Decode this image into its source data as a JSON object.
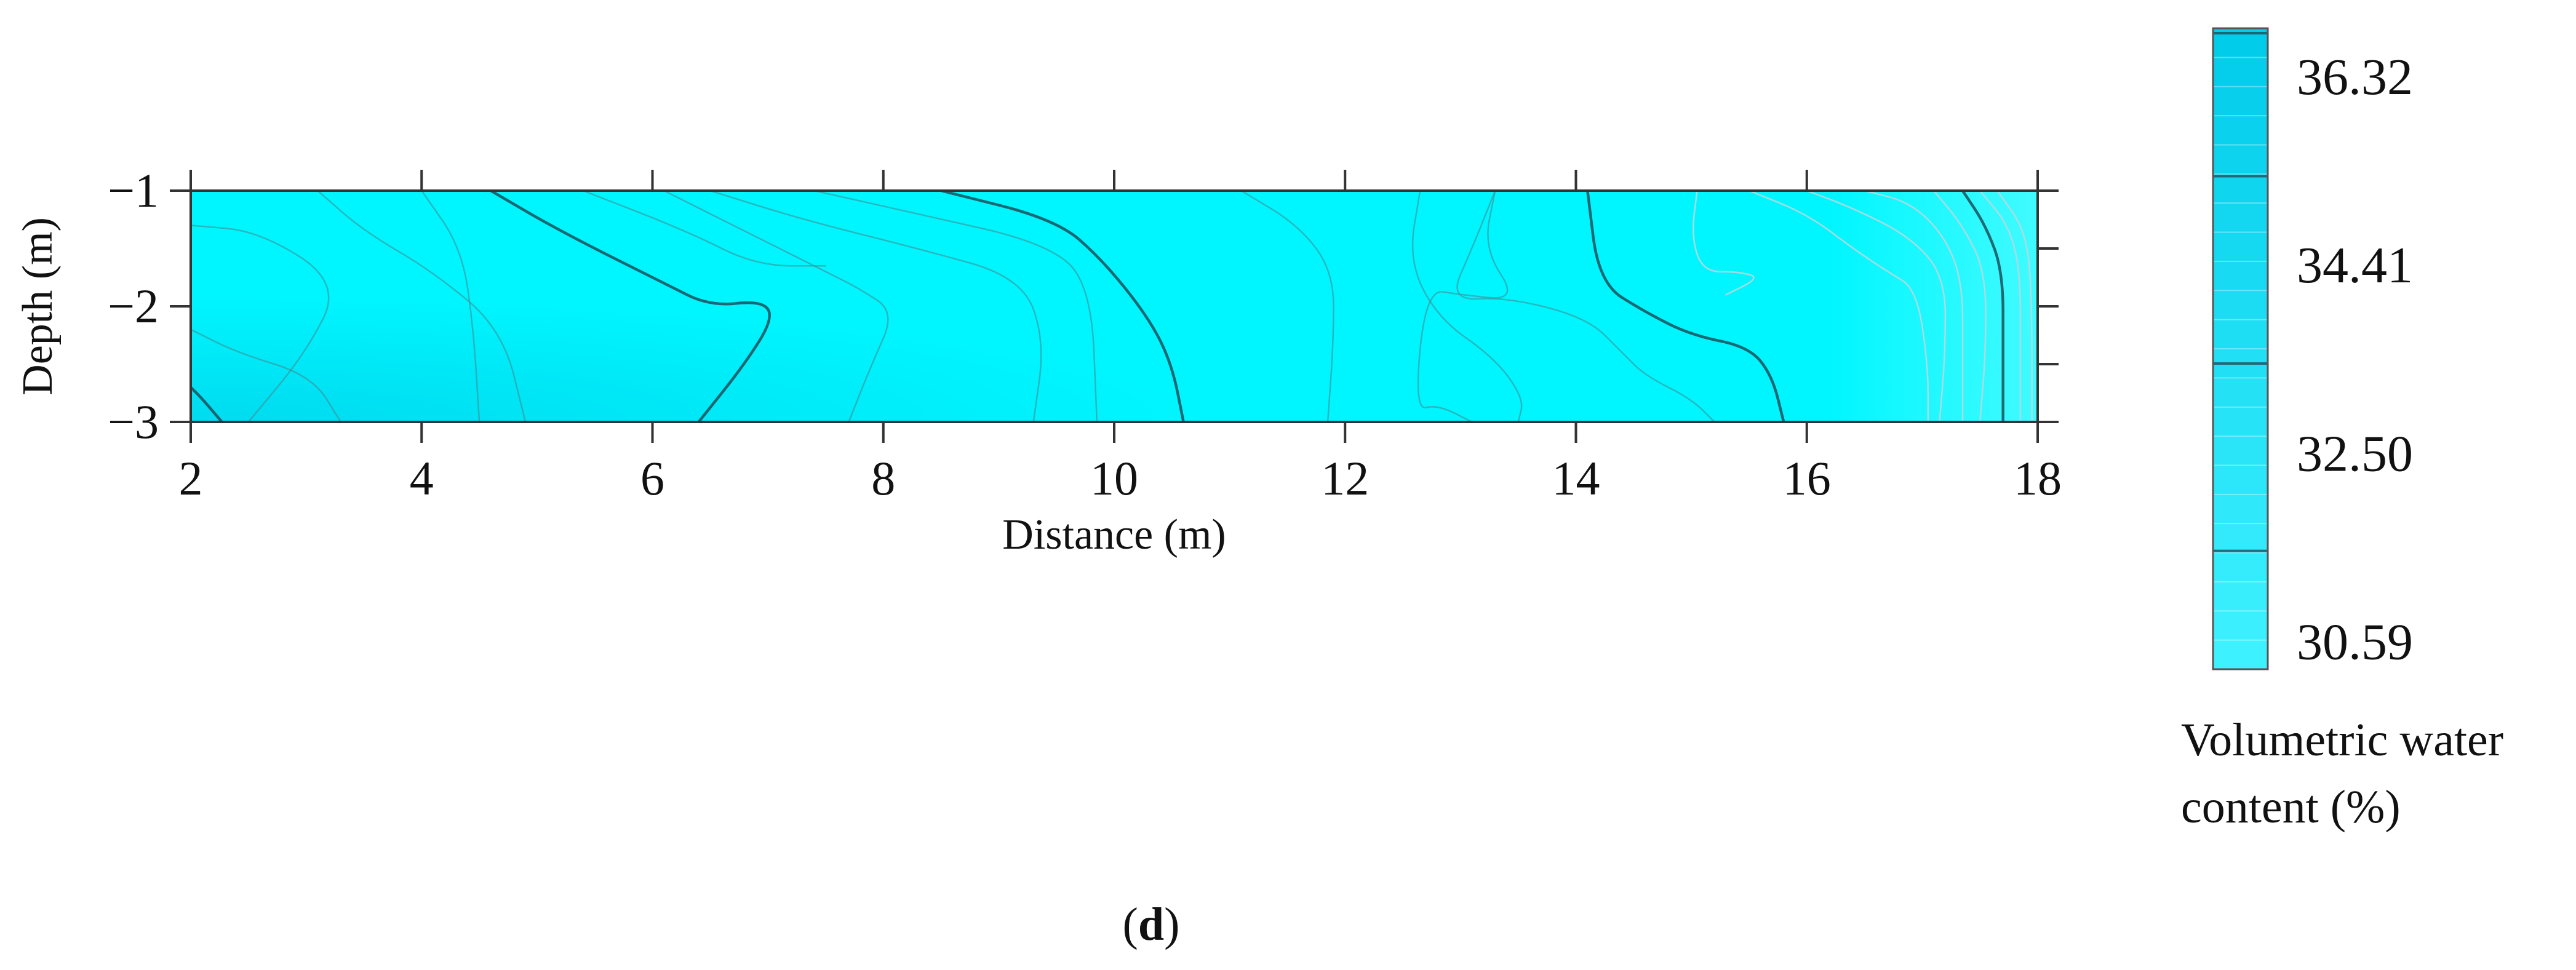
{
  "chart_data": {
    "type": "heatmap",
    "subtype": "contour",
    "xlabel": "Distance (m)",
    "ylabel": "Depth (m)",
    "xlim": [
      2,
      18
    ],
    "ylim": [
      -3,
      -1
    ],
    "x_ticks": [
      2,
      4,
      6,
      8,
      10,
      12,
      14,
      16,
      18
    ],
    "x_tick_labels": [
      "2",
      "4",
      "6",
      "8",
      "10",
      "12",
      "14",
      "16",
      "18"
    ],
    "y_ticks": [
      -1,
      -2,
      -3
    ],
    "y_tick_labels": [
      "−1",
      "−2",
      "−3"
    ],
    "grid": false,
    "colorbar": {
      "title_lines": [
        "Volumetric water",
        "content (%)"
      ],
      "labels": [
        "36.32",
        "34.41",
        "32.50",
        "30.59"
      ],
      "label_values": [
        36.32,
        34.41,
        32.5,
        30.59
      ],
      "range": [
        30.3,
        36.8
      ],
      "color_low": "#3ff2ff",
      "color_high": "#00cbea",
      "placement": "right"
    },
    "fill_color": "#00f6ff",
    "low_color": "#40fbff",
    "high_color": "#00dbef",
    "panel_label": {
      "open": "(",
      "letter": "d",
      "close": ")"
    },
    "contours": [
      {
        "x": [
          2.0,
          2.1,
          2.27
        ],
        "y": [
          -2.7,
          -2.8,
          -3.0
        ],
        "style": "major"
      },
      {
        "x": [
          2.0,
          2.4,
          3.05,
          3.3
        ],
        "y": [
          -2.2,
          -2.4,
          -2.6,
          -3.0
        ],
        "style": "minor"
      },
      {
        "x": [
          2.0,
          2.6,
          3.3,
          3.0,
          2.5
        ],
        "y": [
          -1.3,
          -1.35,
          -1.8,
          -2.4,
          -3.0
        ],
        "style": "minor"
      },
      {
        "x": [
          3.1,
          3.5,
          4.1,
          4.7,
          4.9
        ],
        "y": [
          -1.0,
          -1.35,
          -1.7,
          -2.2,
          -3.0
        ],
        "style": "minor"
      },
      {
        "x": [
          4.0,
          4.35,
          4.45,
          4.5
        ],
        "y": [
          -1.0,
          -1.5,
          -2.2,
          -3.0
        ],
        "style": "minor"
      },
      {
        "x": [
          4.6,
          5.2,
          6.1,
          6.5,
          6.95,
          7.05,
          6.8,
          6.4
        ],
        "y": [
          -1.0,
          -1.35,
          -1.8,
          -2.0,
          -1.95,
          -2.1,
          -2.5,
          -3.0
        ],
        "style": "major"
      },
      {
        "x": [
          5.4,
          6.3,
          6.9,
          7.5
        ],
        "y": [
          -1.0,
          -1.35,
          -1.65,
          -1.65
        ],
        "style": "minor"
      },
      {
        "x": [
          6.1,
          6.9,
          7.5,
          7.8,
          8.1,
          7.9,
          7.7
        ],
        "y": [
          -1.0,
          -1.4,
          -1.7,
          -1.85,
          -2.05,
          -2.5,
          -3.0
        ],
        "style": "minor"
      },
      {
        "x": [
          6.5,
          7.3,
          8.3,
          9.2,
          9.4,
          9.3
        ],
        "y": [
          -1.0,
          -1.25,
          -1.5,
          -1.75,
          -2.3,
          -3.0
        ],
        "style": "minor"
      },
      {
        "x": [
          7.4,
          8.3,
          9.4,
          9.8,
          9.85
        ],
        "y": [
          -1.0,
          -1.2,
          -1.45,
          -1.8,
          -3.0
        ],
        "style": "minor"
      },
      {
        "x": [
          8.5,
          9.5,
          9.9,
          10.3,
          10.5,
          10.6
        ],
        "y": [
          -1.0,
          -1.25,
          -1.6,
          -2.1,
          -2.5,
          -3.0
        ],
        "style": "major"
      },
      {
        "x": [
          11.1,
          11.6,
          11.9,
          11.9,
          11.85
        ],
        "y": [
          -1.0,
          -1.3,
          -1.7,
          -2.3,
          -3.0
        ],
        "style": "minor"
      },
      {
        "x": [
          12.65,
          12.55,
          12.8,
          13.3,
          13.55,
          13.5
        ],
        "y": [
          -1.0,
          -1.6,
          -2.1,
          -2.45,
          -2.8,
          -3.0
        ],
        "style": "minor"
      },
      {
        "x": [
          13.3,
          13.1,
          12.9,
          13.4,
          14.1,
          14.4,
          14.6,
          15.0,
          15.2
        ],
        "y": [
          -1.0,
          -1.5,
          -1.95,
          -1.92,
          -2.1,
          -2.4,
          -2.6,
          -2.8,
          -3.0
        ],
        "style": "minor"
      },
      {
        "x": [
          13.3,
          13.2,
          13.5,
          13.0,
          12.7,
          12.6,
          12.8,
          13.1
        ],
        "y": [
          -1.0,
          -1.5,
          -1.95,
          -1.9,
          -1.85,
          -2.9,
          -2.85,
          -3.0
        ],
        "style": "minor"
      },
      {
        "x": [
          14.1,
          14.2,
          14.6,
          15.0,
          15.5,
          15.7,
          15.8
        ],
        "y": [
          -1.0,
          -1.8,
          -2.05,
          -2.25,
          -2.35,
          -2.6,
          -3.0
        ],
        "style": "major"
      },
      {
        "x": [
          15.05,
          15.0,
          15.1,
          15.4,
          15.6,
          15.3
        ],
        "y": [
          -1.0,
          -1.4,
          -1.7,
          -1.7,
          -1.75,
          -1.9
        ],
        "style": "light"
      },
      {
        "x": [
          15.5,
          16.0,
          16.4,
          16.7,
          16.95,
          17.05,
          17.05
        ],
        "y": [
          -1.0,
          -1.2,
          -1.5,
          -1.7,
          -1.85,
          -2.5,
          -3.0
        ],
        "style": "light"
      },
      {
        "x": [
          16.0,
          16.4,
          16.9,
          17.2,
          17.2,
          17.15
        ],
        "y": [
          -1.0,
          -1.15,
          -1.4,
          -1.75,
          -2.4,
          -3.0
        ],
        "style": "light"
      },
      {
        "x": [
          16.5,
          16.9,
          17.2,
          17.35,
          17.35,
          17.35
        ],
        "y": [
          -1.0,
          -1.1,
          -1.4,
          -1.8,
          -2.4,
          -3.0
        ],
        "style": "light"
      },
      {
        "x": [
          17.1,
          17.35,
          17.55,
          17.55,
          17.5
        ],
        "y": [
          -1.0,
          -1.3,
          -1.7,
          -2.4,
          -3.0
        ],
        "style": "light"
      },
      {
        "x": [
          17.35,
          17.55,
          17.7,
          17.7,
          17.7
        ],
        "y": [
          -1.0,
          -1.3,
          -1.7,
          -2.4,
          -3.0
        ],
        "style": "major"
      },
      {
        "x": [
          17.5,
          17.75,
          17.85,
          17.85,
          17.85
        ],
        "y": [
          -1.0,
          -1.3,
          -1.7,
          -2.4,
          -3.0
        ],
        "style": "light"
      },
      {
        "x": [
          17.65,
          17.9,
          17.95,
          17.95
        ],
        "y": [
          -1.0,
          -1.35,
          -1.9,
          -3.0
        ],
        "style": "light"
      }
    ]
  }
}
